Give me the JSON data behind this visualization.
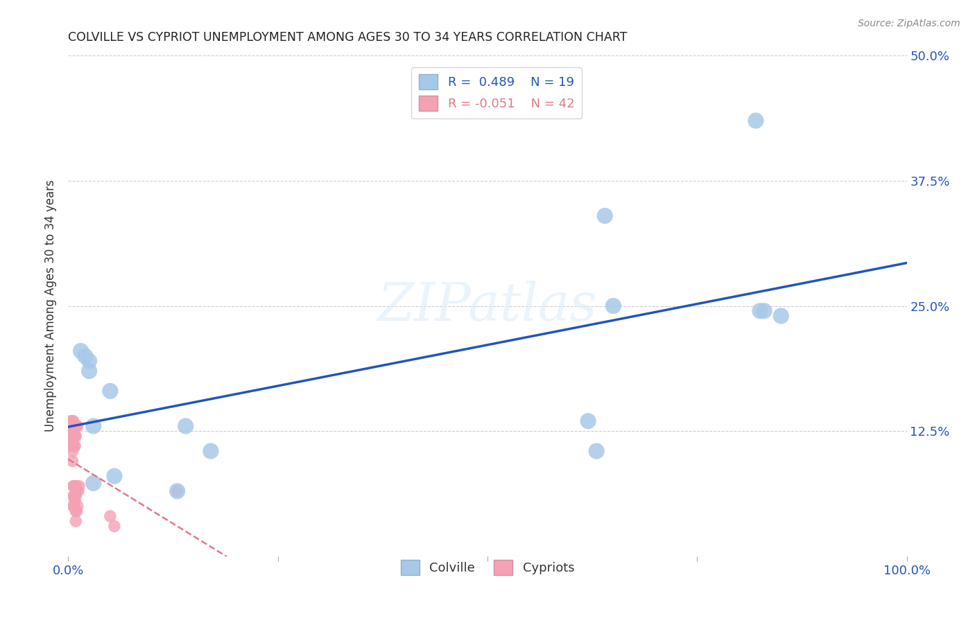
{
  "title": "COLVILLE VS CYPRIOT UNEMPLOYMENT AMONG AGES 30 TO 34 YEARS CORRELATION CHART",
  "source": "Source: ZipAtlas.com",
  "ylabel": "Unemployment Among Ages 30 to 34 years",
  "xlim": [
    0.0,
    1.0
  ],
  "ylim": [
    0.0,
    0.5
  ],
  "xticks": [
    0.0,
    0.25,
    0.5,
    0.75,
    1.0
  ],
  "xtick_labels": [
    "0.0%",
    "",
    "",
    "",
    "100.0%"
  ],
  "ytick_labels": [
    "",
    "12.5%",
    "25.0%",
    "37.5%",
    "50.0%"
  ],
  "yticks": [
    0.0,
    0.125,
    0.25,
    0.375,
    0.5
  ],
  "colville_color": "#a8c8e8",
  "cypriot_color": "#f4a0b5",
  "colville_line_color": "#2255bb",
  "cypriot_line_color": "#e07888",
  "colville_R": 0.489,
  "colville_N": 19,
  "cypriot_R": -0.051,
  "cypriot_N": 42,
  "colville_x": [
    0.015,
    0.02,
    0.025,
    0.025,
    0.03,
    0.03,
    0.05,
    0.055,
    0.13,
    0.14,
    0.17,
    0.62,
    0.63,
    0.64,
    0.65,
    0.82,
    0.825,
    0.83,
    0.85
  ],
  "colville_y": [
    0.205,
    0.2,
    0.195,
    0.185,
    0.13,
    0.073,
    0.165,
    0.08,
    0.065,
    0.13,
    0.105,
    0.135,
    0.105,
    0.34,
    0.25,
    0.435,
    0.245,
    0.245,
    0.24
  ],
  "cypriot_x": [
    0.003,
    0.004,
    0.004,
    0.004,
    0.005,
    0.005,
    0.005,
    0.005,
    0.005,
    0.006,
    0.006,
    0.006,
    0.006,
    0.006,
    0.006,
    0.007,
    0.007,
    0.007,
    0.007,
    0.007,
    0.007,
    0.008,
    0.008,
    0.008,
    0.008,
    0.008,
    0.009,
    0.009,
    0.009,
    0.009,
    0.009,
    0.009,
    0.01,
    0.01,
    0.01,
    0.011,
    0.011,
    0.012,
    0.013,
    0.05,
    0.055,
    0.13
  ],
  "cypriot_y": [
    0.135,
    0.13,
    0.12,
    0.11,
    0.135,
    0.125,
    0.115,
    0.105,
    0.095,
    0.135,
    0.125,
    0.115,
    0.07,
    0.06,
    0.05,
    0.13,
    0.12,
    0.11,
    0.07,
    0.06,
    0.05,
    0.13,
    0.12,
    0.11,
    0.07,
    0.055,
    0.13,
    0.12,
    0.07,
    0.06,
    0.045,
    0.035,
    0.13,
    0.065,
    0.045,
    0.13,
    0.05,
    0.065,
    0.07,
    0.04,
    0.03,
    0.065
  ],
  "watermark": "ZIPatlas",
  "background_color": "#ffffff",
  "grid_color": "#cccccc"
}
